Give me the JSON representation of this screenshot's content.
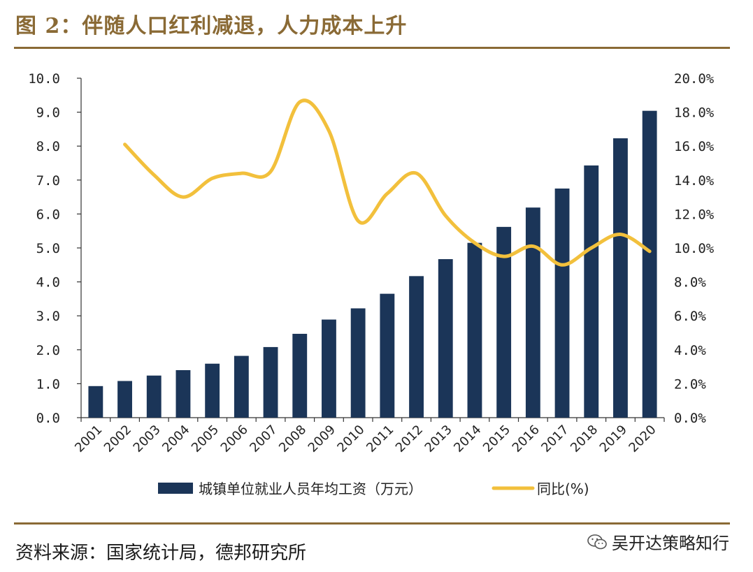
{
  "header": {
    "title": "图 2：伴随人口红利减退，人力成本上升"
  },
  "footer": {
    "source": "资料来源：国家统计局，德邦研究所",
    "watermark": "吴开达策略知行"
  },
  "colors": {
    "bar": "#1b3558",
    "line": "#f2c03c",
    "accent": "#8a6a35"
  },
  "chart_data": {
    "type": "bar",
    "title": "",
    "categories": [
      "2001",
      "2002",
      "2003",
      "2004",
      "2005",
      "2006",
      "2007",
      "2008",
      "2009",
      "2010",
      "2011",
      "2012",
      "2013",
      "2014",
      "2015",
      "2016",
      "2017",
      "2018",
      "2019",
      "2020"
    ],
    "series": [
      {
        "name": "城镇单位就业人员年均工资（万元）",
        "type": "bar",
        "axis": "left",
        "values": [
          0.93,
          1.08,
          1.24,
          1.4,
          1.59,
          1.82,
          2.08,
          2.47,
          2.89,
          3.22,
          3.65,
          4.17,
          4.67,
          5.15,
          5.62,
          6.19,
          6.75,
          7.43,
          8.23,
          9.04
        ]
      },
      {
        "name": "同比(%)",
        "type": "line",
        "axis": "right",
        "values": [
          null,
          16.1,
          14.3,
          13.0,
          14.1,
          14.4,
          14.5,
          18.6,
          16.9,
          11.6,
          13.2,
          14.4,
          11.9,
          10.3,
          9.5,
          10.1,
          9.0,
          10.0,
          10.8,
          9.8
        ]
      }
    ],
    "y_left": {
      "range": [
        0,
        10
      ],
      "step": 1,
      "ticks": [
        "0.0",
        "1.0",
        "2.0",
        "3.0",
        "4.0",
        "5.0",
        "6.0",
        "7.0",
        "8.0",
        "9.0",
        "10.0"
      ]
    },
    "y_right": {
      "range": [
        0,
        20
      ],
      "step": 2,
      "ticks": [
        "0.0%",
        "2.0%",
        "4.0%",
        "6.0%",
        "8.0%",
        "10.0%",
        "12.0%",
        "14.0%",
        "16.0%",
        "18.0%",
        "20.0%"
      ]
    },
    "legend": {
      "position": "bottom",
      "bar_label": "城镇单位就业人员年均工资（万元）",
      "line_label": "同比(%)"
    },
    "grid": false
  }
}
